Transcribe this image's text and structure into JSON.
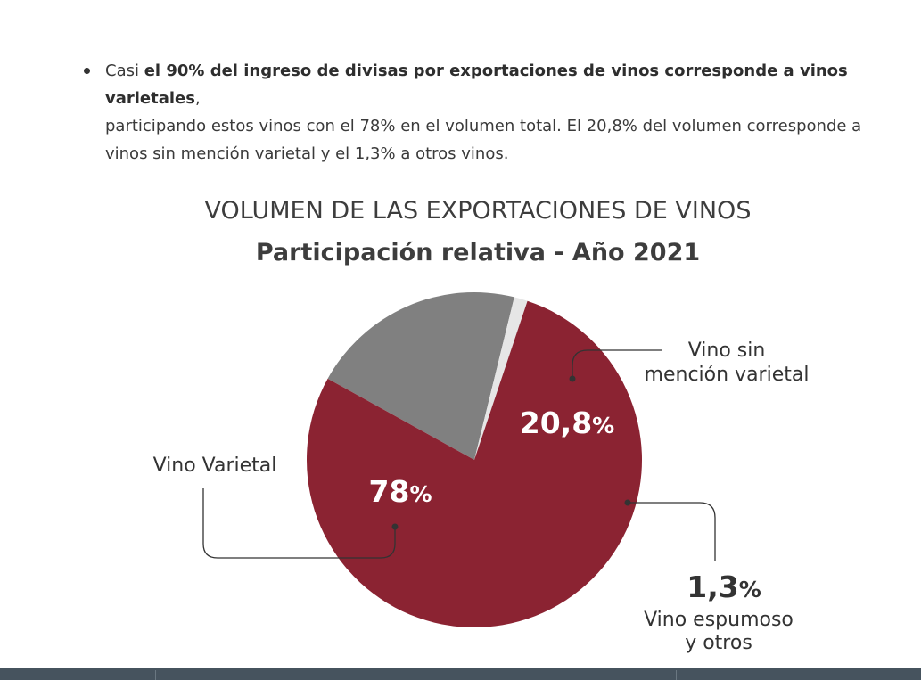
{
  "bullet": {
    "prefix": "Casi ",
    "bold": "el 90% del ingreso de divisas por exportaciones de vinos corresponde a vinos varietales",
    "line1_suffix": ",",
    "line2": "participando estos vinos con el 78% en el volumen total. El 20,8% del volumen corresponde a",
    "line3": "vinos sin mención varietal y el 1,3% a otros vinos."
  },
  "chart_data": {
    "type": "pie",
    "title": "VOLUMEN DE LAS EXPORTACIONES DE VINOS",
    "subtitle": "Participación relativa - Año 2021",
    "slices": [
      {
        "label": "Vino Varietal",
        "value": 78,
        "value_label": "78%",
        "color": "#8b2332"
      },
      {
        "label": "Vino sin mención varietal",
        "value": 20.8,
        "value_label": "20,8%",
        "color": "#808080"
      },
      {
        "label": "Vino espumoso y otros",
        "value": 1.3,
        "value_label": "1,3%",
        "color": "#e6e6e6"
      }
    ],
    "labels": {
      "varietal": "Vino Varietal",
      "sin_mencion_line1": "Vino sin",
      "sin_mencion_line2": "mención varietal",
      "espumoso_line1": "Vino espumoso",
      "espumoso_line2": "y otros"
    }
  }
}
